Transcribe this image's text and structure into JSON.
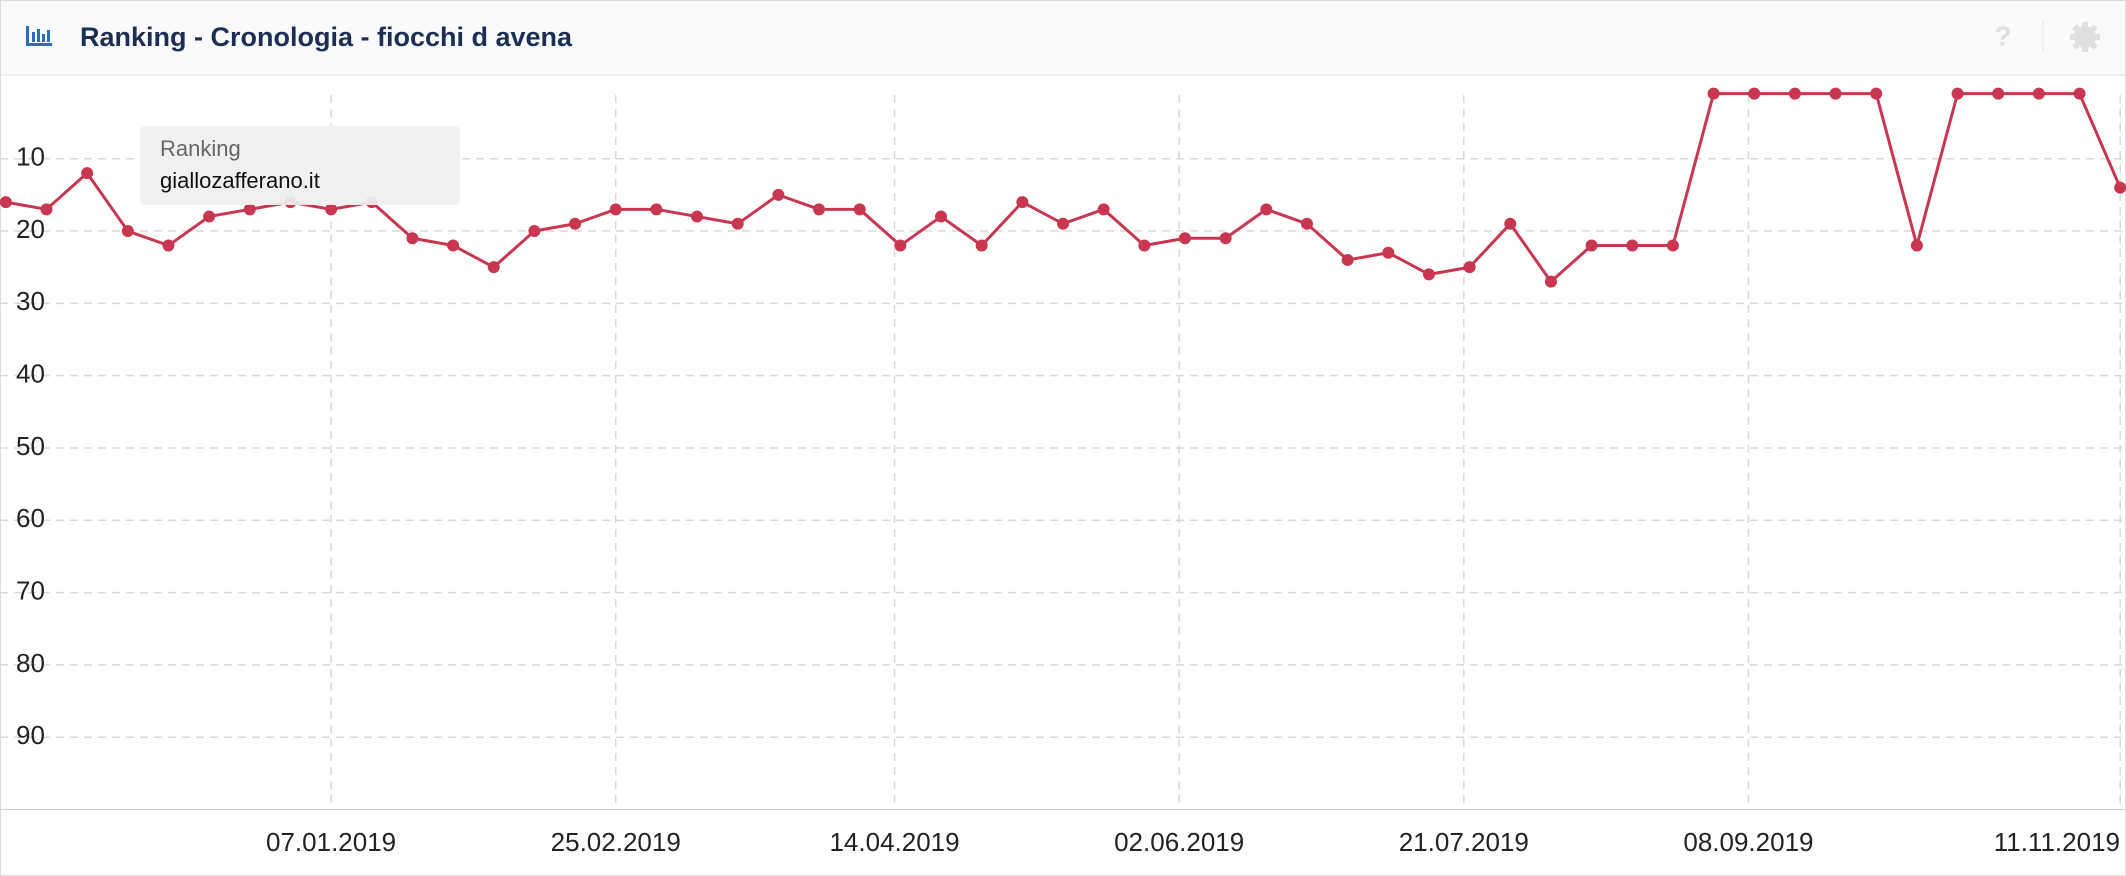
{
  "chart_data": {
    "type": "line",
    "title": "Ranking - Cronologia - fiocchi d avena",
    "tooltip_title": "Ranking",
    "x": [
      "12.11.2018",
      "19.11.2018",
      "26.11.2018",
      "03.12.2018",
      "10.12.2018",
      "17.12.2018",
      "24.12.2018",
      "31.12.2018",
      "07.01.2019",
      "14.01.2019",
      "21.01.2019",
      "28.01.2019",
      "04.02.2019",
      "11.02.2019",
      "18.02.2019",
      "25.02.2019",
      "04.03.2019",
      "11.03.2019",
      "18.03.2019",
      "25.03.2019",
      "01.04.2019",
      "08.04.2019",
      "15.04.2019",
      "22.04.2019",
      "29.04.2019",
      "06.05.2019",
      "13.05.2019",
      "20.05.2019",
      "27.05.2019",
      "03.06.2019",
      "10.06.2019",
      "17.06.2019",
      "24.06.2019",
      "01.07.2019",
      "08.07.2019",
      "15.07.2019",
      "22.07.2019",
      "29.07.2019",
      "05.08.2019",
      "12.08.2019",
      "19.08.2019",
      "26.08.2019",
      "02.09.2019",
      "09.09.2019",
      "16.09.2019",
      "23.09.2019",
      "30.09.2019",
      "07.10.2019",
      "14.10.2019",
      "21.10.2019",
      "28.10.2019",
      "04.11.2019",
      "11.11.2019"
    ],
    "series": [
      {
        "name": "giallozafferano.it",
        "color": "#c8374f",
        "values": [
          16,
          17,
          12,
          20,
          22,
          18,
          17,
          16,
          17,
          16,
          21,
          22,
          25,
          20,
          19,
          17,
          17,
          18,
          19,
          15,
          17,
          17,
          22,
          18,
          22,
          16,
          19,
          17,
          22,
          21,
          21,
          17,
          19,
          24,
          23,
          26,
          25,
          19,
          27,
          22,
          22,
          22,
          1,
          1,
          1,
          1,
          1,
          22,
          1,
          1,
          1,
          1,
          14
        ]
      }
    ],
    "xlim": [
      "11.11.2018",
      "12.11.2019"
    ],
    "xticks": [
      "07.01.2019",
      "25.02.2019",
      "14.04.2019",
      "02.06.2019",
      "21.07.2019",
      "08.09.2019",
      "11.11.2019"
    ],
    "ylim": [
      0,
      100
    ],
    "y_reversed": true,
    "yticks": [
      10,
      20,
      30,
      40,
      50,
      60,
      70,
      80,
      90
    ],
    "grid": true
  }
}
